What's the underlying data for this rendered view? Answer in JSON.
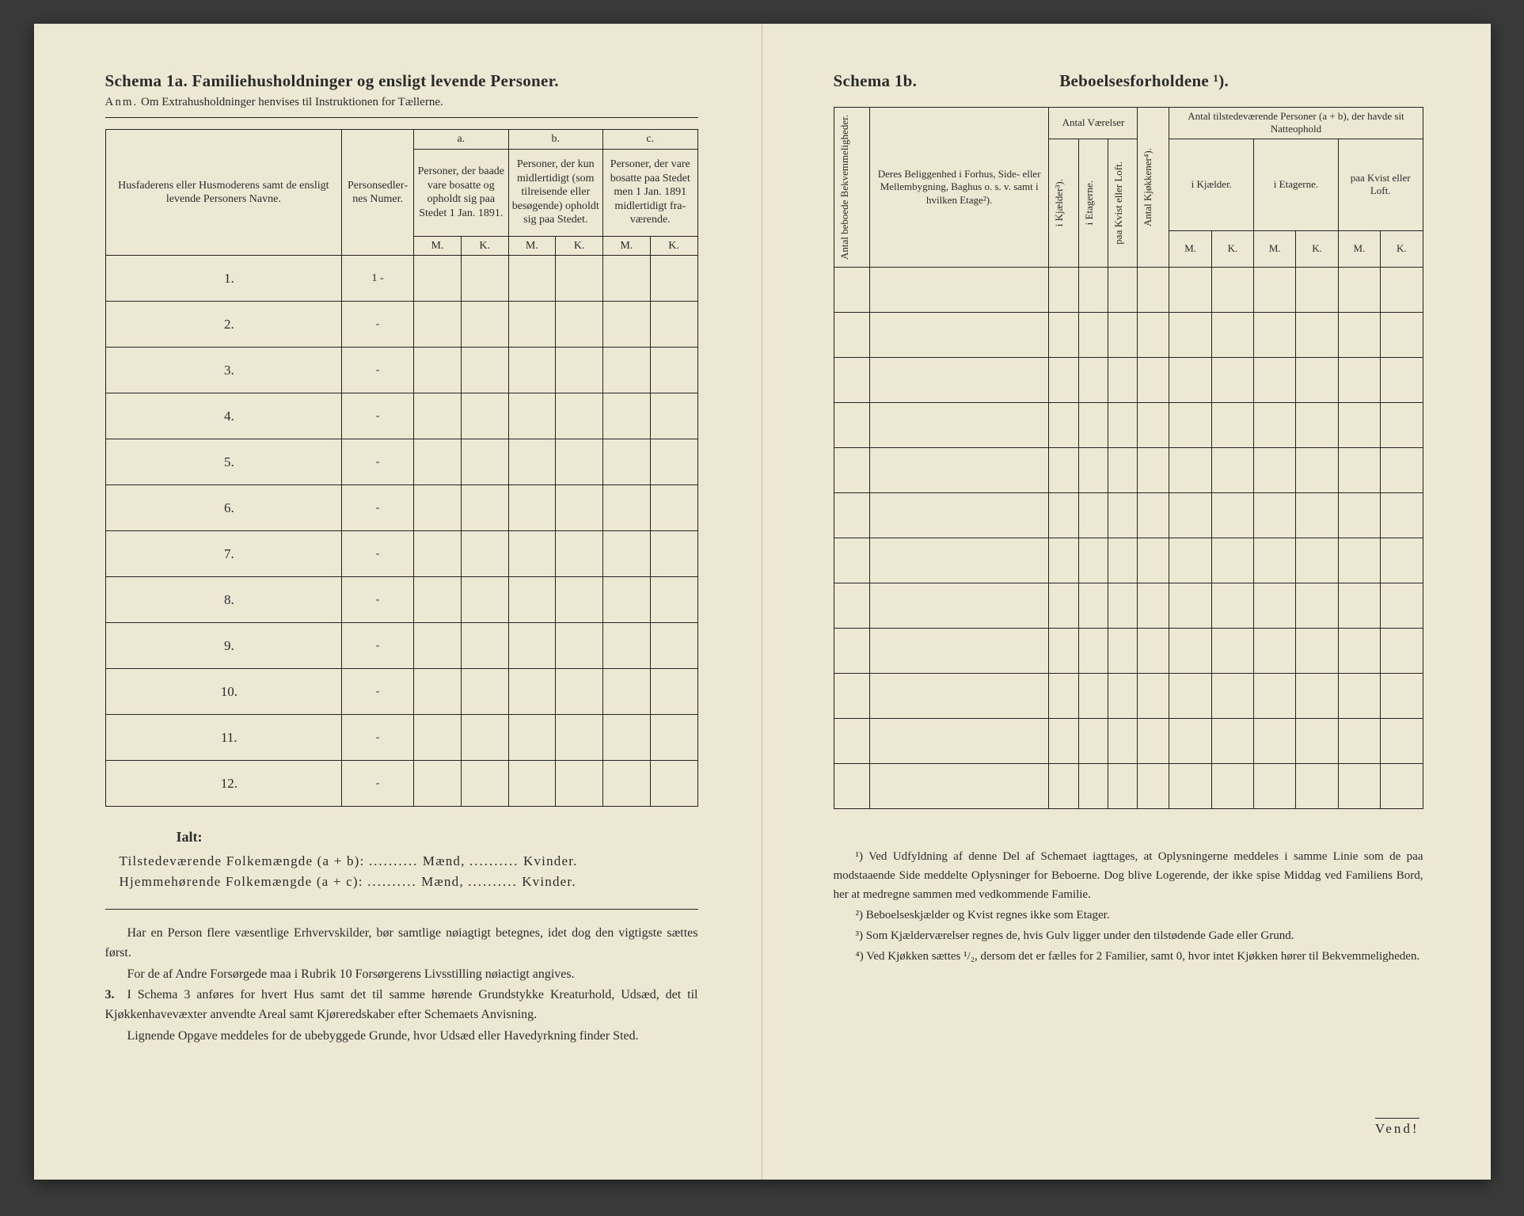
{
  "left": {
    "title": "Schema 1a.   Familiehusholdninger og ensligt levende Personer.",
    "anm_label": "Anm.",
    "anm_text": "Om Extrahusholdninger henvises til Instruktionen for Tællerne.",
    "headers": {
      "name": "Husfaderens eller Husmode­rens samt de ensligt levende Personers Navne.",
      "num": "Person­sedler­nes Numer.",
      "a_label": "a.",
      "a_text": "Personer, der baade vare bo­satte og opholdt sig paa Stedet 1 Jan. 1891.",
      "b_label": "b.",
      "b_text": "Personer, der kun midler­tidigt (som tilreisende eller besøgende) opholdt sig paa Stedet.",
      "c_label": "c.",
      "c_text": "Personer, der vare bosatte paa Stedet men 1 Jan. 1891 midler­tidigt fra­værende.",
      "M": "M.",
      "K": "K."
    },
    "rows": [
      "1.",
      "2.",
      "3.",
      "4.",
      "5.",
      "6.",
      "7.",
      "8.",
      "9.",
      "10.",
      "11.",
      "12."
    ],
    "row_num_mark": "1 -",
    "row_dash": "-",
    "ialt": "Ialt:",
    "tot1_a": "Tilstedeværende Folkemængde (a + b):",
    "tot2_a": "Hjemmehørende Folkemængde (a + c):",
    "dots": "..........",
    "maend": "Mænd,",
    "kvinder": "Kvinder.",
    "notes_p1": "Har en Person flere væsentlige Erhvervskilder, bør samtlige nøiagtigt betegnes, idet dog den vigtigste sættes først.",
    "notes_p2": "For de af Andre Forsørgede maa i Rubrik 10 Forsørgerens Livsstilling nøiactigt angives.",
    "notes_p3_num": "3.",
    "notes_p3": "I Schema 3 anføres for hvert Hus samt det til samme hørende Grund­stykke Kreaturhold, Udsæd, det til Kjøkkenhavevæxter anvendte Areal samt Kjøreredskaber efter Schemaets Anvisning.",
    "notes_p4": "Lignende Opgave meddeles for de ubebyggede Grunde, hvor Udsæd eller Havedyrkning finder Sted."
  },
  "right": {
    "title_a": "Schema 1b.",
    "title_b": "Beboelsesforholdene ¹).",
    "headers": {
      "col1": "Antal beboede Bekvemmeligheder.",
      "col2": "Deres Beliggenhed i Forhus, Side- eller Mellembygning, Baghus o. s. v. samt i hvilken Etage²).",
      "vaer": "Antal Værelser",
      "v_kj": "i Kjælder³).",
      "v_et": "i Etagerne.",
      "v_kv": "paa Kvist eller Loft.",
      "kjok": "Antal Kjøkkener⁴).",
      "pers_top": "Antal tilstedeværende Personer (a + b), der havde sit Natteophold",
      "p_kj": "i Kjæl­der.",
      "p_et": "i Etagerne.",
      "p_kv": "paa Kvist eller Loft.",
      "M": "M.",
      "K": "K."
    },
    "row_count": 12,
    "fn1": "¹) Ved Udfyldning af denne Del af Schemaet iagttages, at Oplysningerne meddeles i samme Linie som de paa modstaaende Side meddelte Oplysninger for Beboerne. Dog blive Logerende, der ikke spise Middag ved Familiens Bord, her at medregne sammen med vedkommende Familie.",
    "fn2": "²) Beboelseskjælder og Kvist regnes ikke som Etager.",
    "fn3": "³) Som Kjælderværelser regnes de, hvis Gulv ligger under den tilstødende Gade eller Grund.",
    "fn4": "⁴) Ved Kjøkken sættes ¹/₂, dersom det er fælles for 2 Familier, samt 0, hvor intet Kjøkken hører til Bekvemmeligheden.",
    "vend": "Vend!"
  },
  "colors": {
    "paper": "#ede8d4",
    "ink": "#2b2b2b",
    "bg": "#3a3a3a"
  }
}
